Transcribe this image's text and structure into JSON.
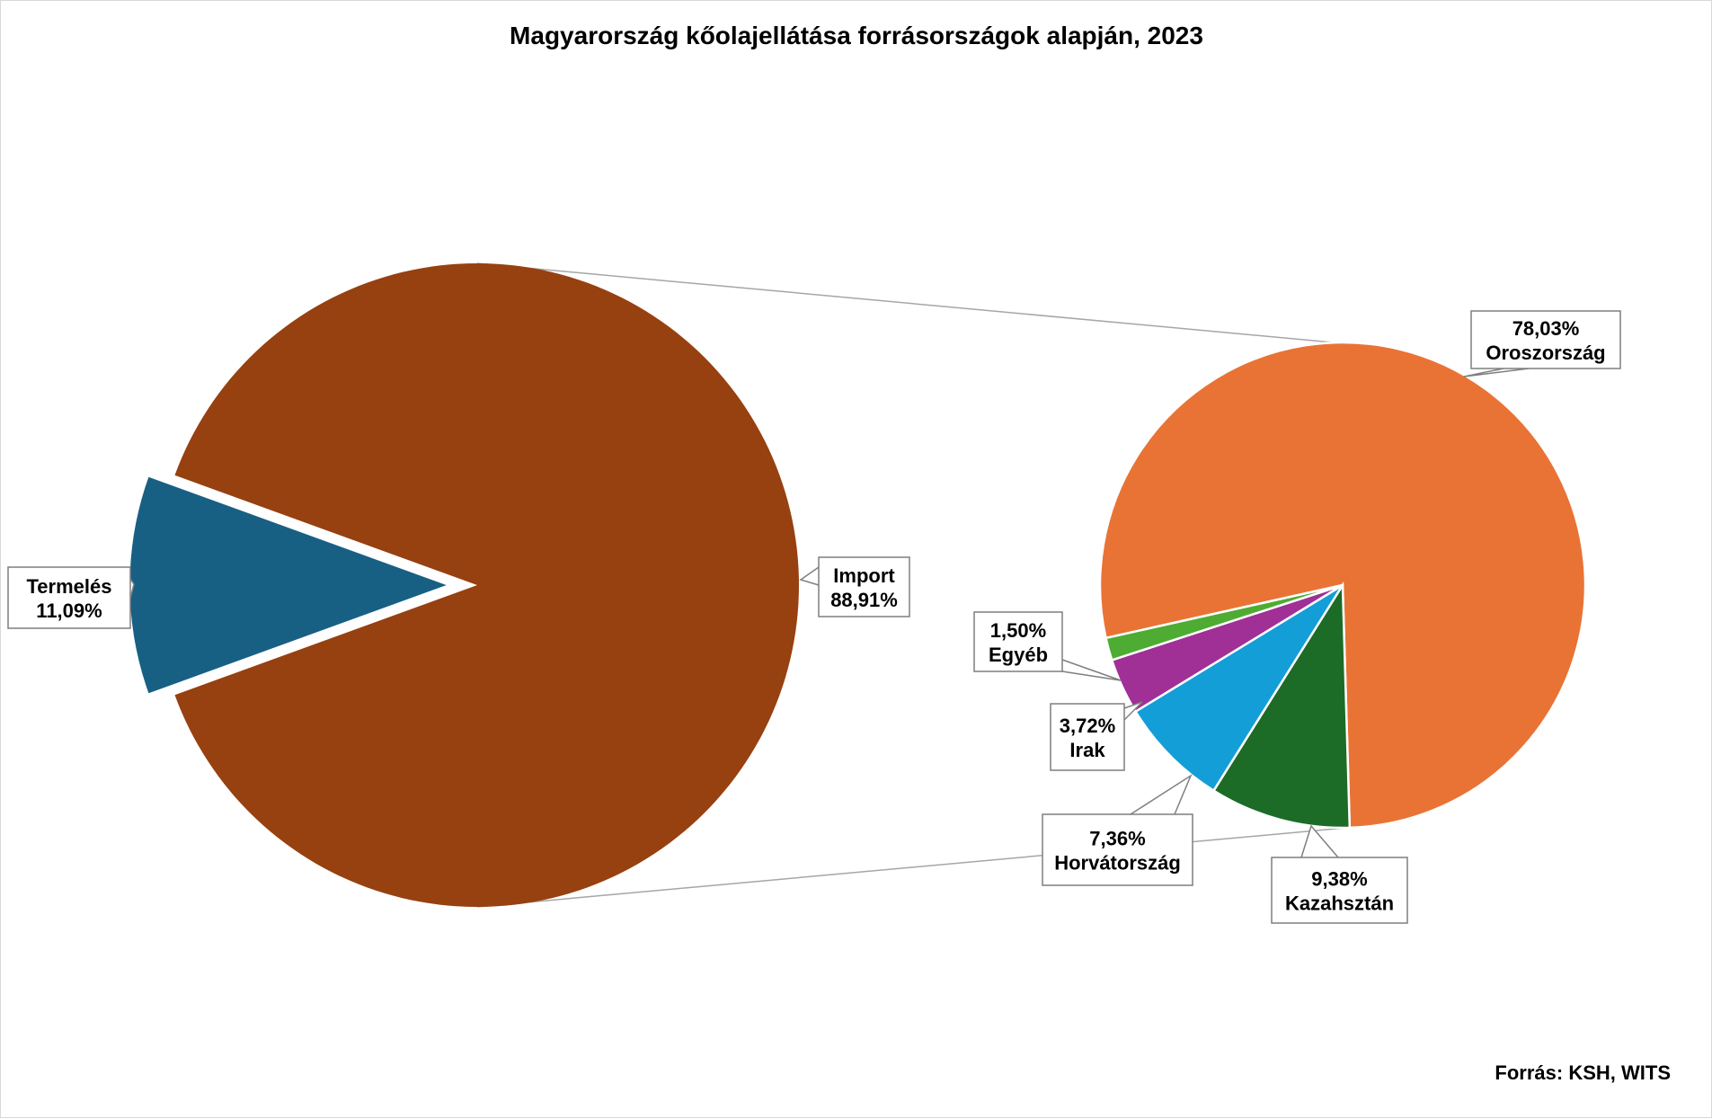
{
  "chart_data": {
    "type": "pie",
    "title": "Magyarország kőolajellátása forrásországok alapján, 2023",
    "source": "Forrás: KSH, WITS",
    "main_pie": {
      "slices": [
        {
          "label": "Import",
          "value_label": "88,91%",
          "value": 88.91,
          "color": "#974010"
        },
        {
          "label": "Termelés",
          "value_label": "11,09%",
          "value": 11.09,
          "color": "#185F84"
        }
      ]
    },
    "breakdown_pie": {
      "of": "Import",
      "slices": [
        {
          "label": "Oroszország",
          "value_label": "78,03%",
          "value": 78.03,
          "color": "#E97335"
        },
        {
          "label": "Kazahsztán",
          "value_label": "9,38%",
          "value": 9.38,
          "color": "#1C6B26"
        },
        {
          "label": "Horvátország",
          "value_label": "7,36%",
          "value": 7.36,
          "color": "#149ED8"
        },
        {
          "label": "Irak",
          "value_label": "3,72%",
          "value": 3.72,
          "color": "#A02F96"
        },
        {
          "label": "Egyéb",
          "value_label": "1,50%",
          "value": 1.5,
          "color": "#4EAC32"
        }
      ]
    }
  }
}
